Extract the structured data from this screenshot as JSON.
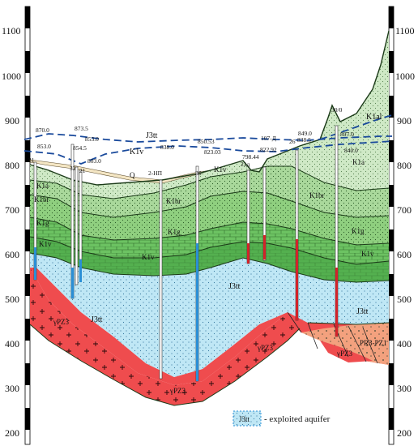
{
  "axis": {
    "left_ticks": [
      "1100",
      "1000",
      "900",
      "800",
      "700",
      "600",
      "500",
      "400",
      "300",
      "200"
    ],
    "right_ticks": [
      "1100",
      "1000",
      "900",
      "800",
      "700",
      "600",
      "500",
      "400",
      "300",
      "200"
    ]
  },
  "wells": [
    {
      "id": "w31",
      "name": "31",
      "elevation": ""
    },
    {
      "id": "w870",
      "name": "",
      "elevation": "870.0"
    },
    {
      "id": "w853a",
      "name": "",
      "elevation": "853.0"
    },
    {
      "id": "w873",
      "name": "",
      "elevation": "873.5"
    },
    {
      "id": "w854",
      "name": "",
      "elevation": "854.5"
    },
    {
      "id": "w853b",
      "name": "",
      "elevation": "853.0"
    },
    {
      "id": "w32",
      "name": "32",
      "elevation": ""
    },
    {
      "id": "w21",
      "name": "21",
      "elevation": ""
    },
    {
      "id": "w803",
      "name": "",
      "elevation": "803.0"
    },
    {
      "id": "w2np",
      "name": "2-НП",
      "elevation": "838.0"
    },
    {
      "id": "w36",
      "name": "36",
      "elevation": "850.53"
    },
    {
      "id": "w823",
      "name": "",
      "elevation": "823.03"
    },
    {
      "id": "w21d",
      "name": "21д",
      "elevation": "798.44"
    },
    {
      "id": "w107",
      "name": "107-Д",
      "elevation": "822.92"
    },
    {
      "id": "w26",
      "name": "26",
      "elevation": "849.0"
    },
    {
      "id": "w838",
      "name": "",
      "elevation": "838.5"
    },
    {
      "id": "w30",
      "name": "30/0",
      "elevation": ""
    },
    {
      "id": "w897",
      "name": "",
      "elevation": "897.0"
    },
    {
      "id": "w840",
      "name": "",
      "elevation": "840.0"
    }
  ],
  "units": {
    "j3tt_top": "J3tt",
    "k1v": "K1v",
    "k1al_right": "K1al",
    "k1a_left": "K1a",
    "k1br_left": "K1br",
    "k1g_left": "K1g",
    "k1v_left": "K1v",
    "q": "Q",
    "k1br_mid": "K1br",
    "k1g_mid": "K1g",
    "k1v_mid": "K1v",
    "k1a_right": "K1a",
    "k1br_right": "K1br",
    "k1g_right": "K1g",
    "k1v_right": "K1v",
    "k1v_small": "K1v",
    "j3tt_left": "J3tt",
    "j3tt_mid": "J3tt",
    "j3tt_right": "J3tt",
    "pz_left": "γPZ3",
    "pz_bottom": "γPZ3",
    "pz_mid": "γPZ3",
    "pz_right": "γPZ3",
    "prpz": "PR3-PZ1"
  },
  "legend": {
    "symbol": "J3tt",
    "text": "- exploited aquifer"
  },
  "colors": {
    "aquifer": "#bfe7f5",
    "granite": "#ef4c4e",
    "prpz": "#f3a17e",
    "green_light": "#cfe9c6",
    "green_mid": "#a9d89b",
    "green_dark": "#6cc262",
    "green_deep": "#54b04f",
    "water_table": "#1a4a9c",
    "screen_blue": "#2a8fd6",
    "screen_red": "#d2232a"
  }
}
